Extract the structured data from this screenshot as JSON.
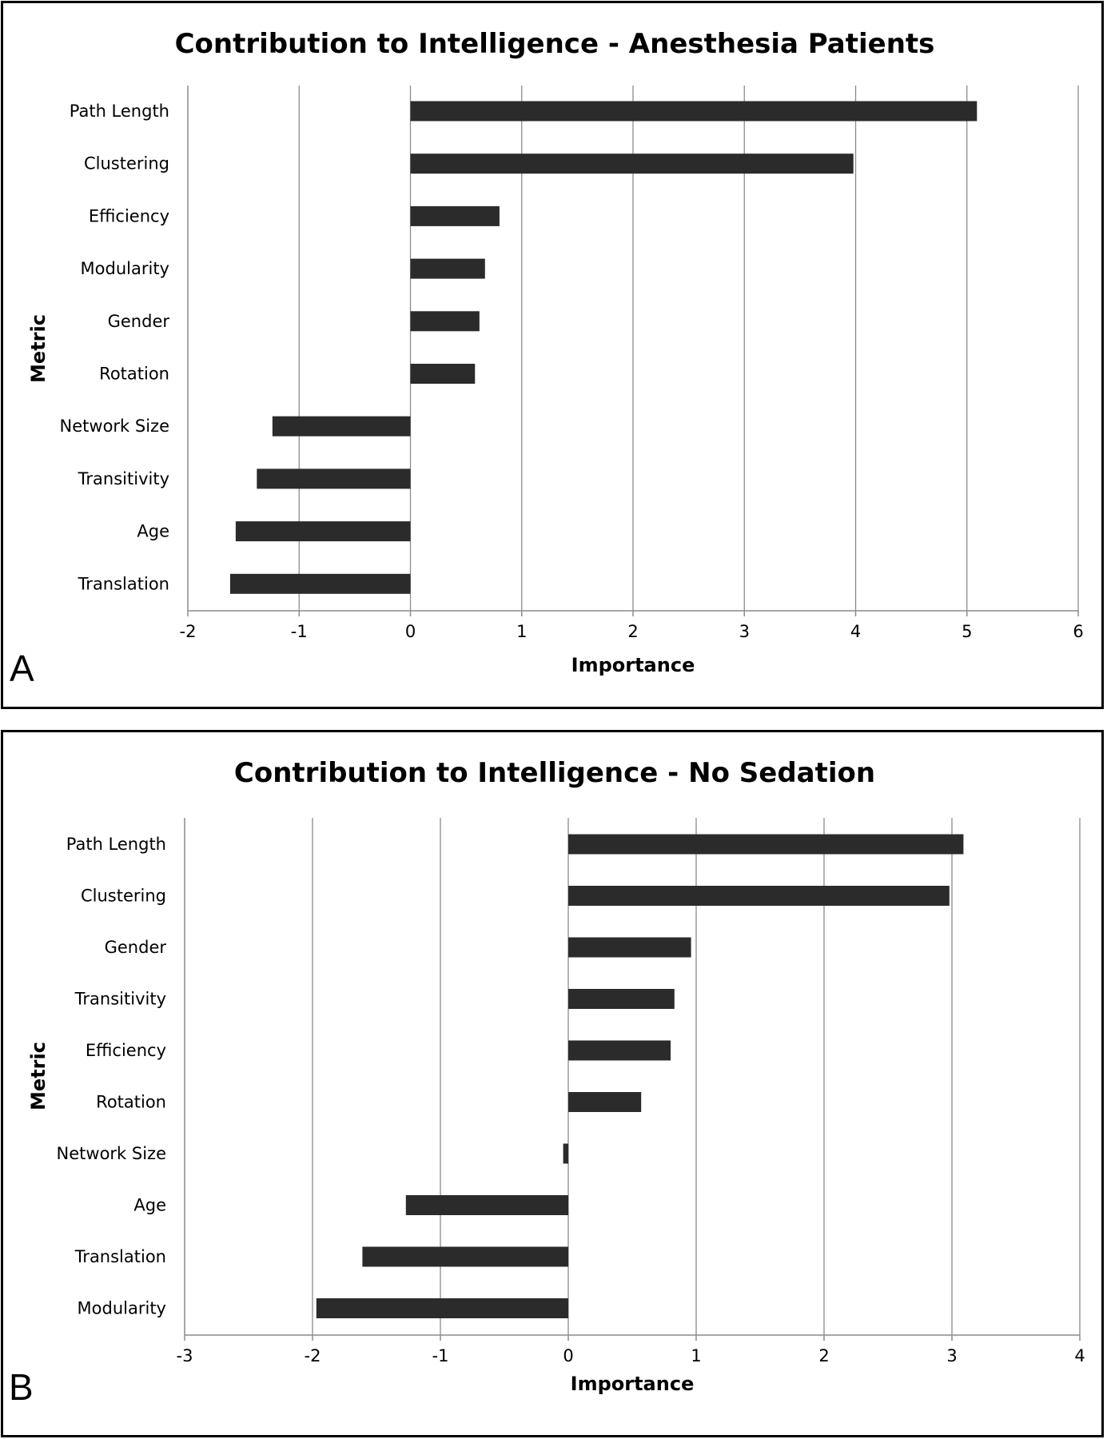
{
  "chart_data": [
    {
      "type": "bar",
      "orientation": "horizontal",
      "panel_label": "A",
      "title": "Contribution to Intelligence - Anesthesia Patients",
      "xlabel": "Importance",
      "ylabel": "Metric",
      "xlim": [
        -2,
        6
      ],
      "xticks": [
        -2,
        -1,
        0,
        1,
        2,
        3,
        4,
        5,
        6
      ],
      "grid": true,
      "bar_color": "#2b2b2b",
      "categories": [
        "Path Length",
        "Clustering",
        "Efficiency",
        "Modularity",
        "Gender",
        "Rotation",
        "Network Size",
        "Transitivity",
        "Age",
        "Translation"
      ],
      "values": [
        5.09,
        3.98,
        0.8,
        0.67,
        0.62,
        0.58,
        -1.24,
        -1.38,
        -1.57,
        -1.62
      ]
    },
    {
      "type": "bar",
      "orientation": "horizontal",
      "panel_label": "B",
      "title": "Contribution to Intelligence - No Sedation",
      "xlabel": "Importance",
      "ylabel": "Metric",
      "xlim": [
        -3,
        4
      ],
      "xticks": [
        -3,
        -2,
        -1,
        0,
        1,
        2,
        3,
        4
      ],
      "grid": true,
      "bar_color": "#2b2b2b",
      "categories": [
        "Path Length",
        "Clustering",
        "Gender",
        "Transitivity",
        "Efficiency",
        "Rotation",
        "Network Size",
        "Age",
        "Translation",
        "Modularity"
      ],
      "values": [
        3.09,
        2.98,
        0.96,
        0.83,
        0.8,
        0.57,
        -0.04,
        -1.27,
        -1.61,
        -1.97
      ]
    }
  ]
}
